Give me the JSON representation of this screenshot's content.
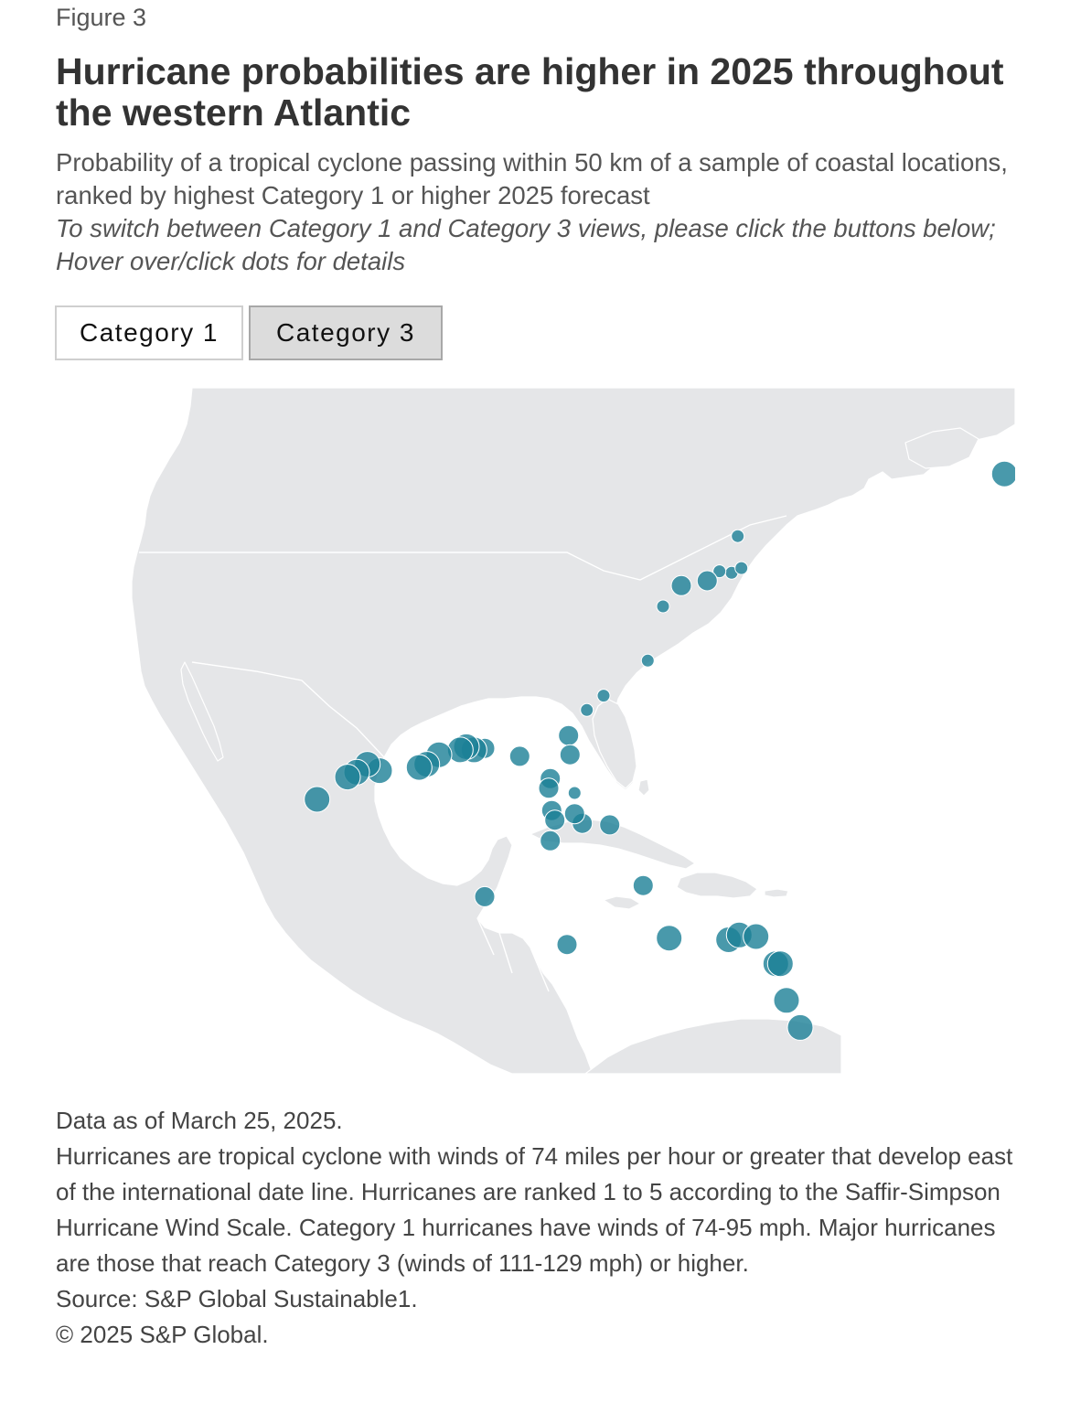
{
  "figure_label": "Figure 3",
  "title": "Hurricane probabilities are higher in 2025 throughout the western Atlantic",
  "subtitle": "Probability of a tropical cyclone passing within 50 km of a sample of coastal locations, ranked by highest Category 1 or higher 2025 forecast",
  "instructions": "To switch between Category 1 and Category 3 views, please click the buttons below; Hover over/click dots for details",
  "buttons": {
    "category1": "Category 1",
    "category3": "Category 3",
    "selected": "Category 3"
  },
  "colors": {
    "land": "#e5e6e8",
    "border": "#ffffff",
    "dot": "#1b7f96",
    "button_selected_bg": "#dcdcdc"
  },
  "map": {
    "projection": "equirectangular",
    "lon_range": [
      -115,
      -52
    ],
    "lat_range": [
      10,
      53
    ],
    "location_dots": [
      {
        "lon": -52.7,
        "lat": 47.6,
        "size": 3
      },
      {
        "lon": -70.2,
        "lat": 43.7,
        "size": 1
      },
      {
        "lon": -70.6,
        "lat": 41.4,
        "size": 1
      },
      {
        "lon": -69.96,
        "lat": 41.7,
        "size": 1
      },
      {
        "lon": -71.4,
        "lat": 41.5,
        "size": 1
      },
      {
        "lon": -72.2,
        "lat": 40.9,
        "size": 2
      },
      {
        "lon": -73.9,
        "lat": 40.6,
        "size": 2
      },
      {
        "lon": -75.1,
        "lat": 39.3,
        "size": 1
      },
      {
        "lon": -76.1,
        "lat": 35.9,
        "size": 1
      },
      {
        "lon": -79.0,
        "lat": 33.7,
        "size": 1
      },
      {
        "lon": -80.1,
        "lat": 32.8,
        "size": 1
      },
      {
        "lon": -81.3,
        "lat": 31.2,
        "size": 2
      },
      {
        "lon": -81.2,
        "lat": 30.0,
        "size": 2
      },
      {
        "lon": -80.9,
        "lat": 27.6,
        "size": 1
      },
      {
        "lon": -80.4,
        "lat": 25.7,
        "size": 2
      },
      {
        "lon": -82.5,
        "lat": 28.5,
        "size": 2
      },
      {
        "lon": -82.6,
        "lat": 27.9,
        "size": 2
      },
      {
        "lon": -82.4,
        "lat": 26.5,
        "size": 2
      },
      {
        "lon": -82.2,
        "lat": 25.9,
        "size": 2
      },
      {
        "lon": -80.9,
        "lat": 26.3,
        "size": 2
      },
      {
        "lon": -82.5,
        "lat": 24.6,
        "size": 2
      },
      {
        "lon": -78.6,
        "lat": 25.6,
        "size": 2
      },
      {
        "lon": -84.5,
        "lat": 29.9,
        "size": 2
      },
      {
        "lon": -86.8,
        "lat": 30.4,
        "size": 2
      },
      {
        "lon": -87.5,
        "lat": 30.3,
        "size": 3
      },
      {
        "lon": -88.0,
        "lat": 30.5,
        "size": 3
      },
      {
        "lon": -88.4,
        "lat": 30.3,
        "size": 3
      },
      {
        "lon": -89.8,
        "lat": 30.0,
        "size": 3
      },
      {
        "lon": -90.6,
        "lat": 29.4,
        "size": 3
      },
      {
        "lon": -91.1,
        "lat": 29.2,
        "size": 3
      },
      {
        "lon": -93.7,
        "lat": 29.0,
        "size": 3
      },
      {
        "lon": -94.5,
        "lat": 29.4,
        "size": 3
      },
      {
        "lon": -95.2,
        "lat": 28.9,
        "size": 3
      },
      {
        "lon": -95.8,
        "lat": 28.6,
        "size": 3
      },
      {
        "lon": -97.8,
        "lat": 27.2,
        "size": 3
      },
      {
        "lon": -86.8,
        "lat": 21.1,
        "size": 2
      },
      {
        "lon": -76.4,
        "lat": 21.8,
        "size": 2
      },
      {
        "lon": -81.4,
        "lat": 18.1,
        "size": 2
      },
      {
        "lon": -74.7,
        "lat": 18.5,
        "size": 3
      },
      {
        "lon": -70.8,
        "lat": 18.4,
        "size": 3
      },
      {
        "lon": -70.1,
        "lat": 18.7,
        "size": 3
      },
      {
        "lon": -69.0,
        "lat": 18.6,
        "size": 3
      },
      {
        "lon": -67.7,
        "lat": 16.9,
        "size": 3
      },
      {
        "lon": -67.4,
        "lat": 16.9,
        "size": 3
      },
      {
        "lon": -67.0,
        "lat": 14.6,
        "size": 3
      },
      {
        "lon": -66.1,
        "lat": 12.9,
        "size": 3
      }
    ]
  },
  "footnotes": {
    "data_as_of": "Data as of March 25, 2025.",
    "definition": "Hurricanes are tropical cyclone with winds of 74 miles per hour or greater that develop east of the international date line. Hurricanes are ranked 1 to 5 according to the Saffir-Simpson Hurricane Wind Scale. Category 1 hurricanes have winds of 74-95 mph. Major hurricanes are those that reach Category 3 (winds of 111-129 mph) or higher.",
    "source": "Source: S&P Global Sustainable1.",
    "copyright": "© 2025 S&P Global."
  }
}
